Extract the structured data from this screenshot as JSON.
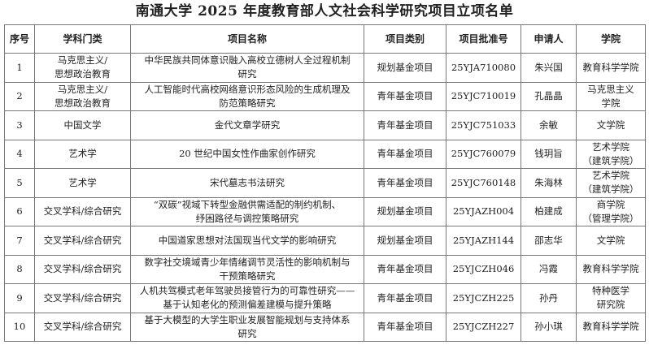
{
  "title": "南通大学 2025 年度教育部人文社会科学研究项目立项名单",
  "columns": [
    "序号",
    "学科门类",
    "项目名称",
    "项目类别",
    "项目批准号",
    "申请人",
    "学院"
  ],
  "rows": [
    {
      "no": "1",
      "discipline": "马克思主义/\n思想政治教育",
      "name": "中华民族共同体意识融入高校立德树人全过程机制\n研究",
      "category": "规划基金项目",
      "approval": "25YJA710080",
      "applicant": "朱兴国",
      "college": "教育科学学院"
    },
    {
      "no": "2",
      "discipline": "马克思主义/\n思想政治教育",
      "name": "人工智能时代高校网络意识形态风险的生成机理及\n防范策略研究",
      "category": "青年基金项目",
      "approval": "25YJC710019",
      "applicant": "孔晶晶",
      "college": "马克思主义\n学院"
    },
    {
      "no": "3",
      "discipline": "中国文学",
      "name": "金代文章学研究",
      "category": "青年基金项目",
      "approval": "25YJC751033",
      "applicant": "余敏",
      "college": "文学院"
    },
    {
      "no": "4",
      "discipline": "艺术学",
      "name": "20 世纪中国女性作曲家创作研究",
      "category": "青年基金项目",
      "approval": "25YJC760079",
      "applicant": "钱玥旨",
      "college": "艺术学院\n（建筑学院）"
    },
    {
      "no": "5",
      "discipline": "艺术学",
      "name": "宋代墓志书法研究",
      "category": "青年基金项目",
      "approval": "25YJC760148",
      "applicant": "朱海林",
      "college": "艺术学院\n（建筑学院）"
    },
    {
      "no": "6",
      "discipline": "交叉学科/综合研究",
      "name": "“双碳”视域下转型金融供需适配的制约机制、\n纾困路径与调控策略研究",
      "category": "规划基金项目",
      "approval": "25YJAZH004",
      "applicant": "柏建成",
      "college": "商学院\n（管理学院）"
    },
    {
      "no": "7",
      "discipline": "交叉学科/综合研究",
      "name": "中国道家思想对法国现当代文学的影响研究",
      "category": "规划基金项目",
      "approval": "25YJAZH144",
      "applicant": "邵志华",
      "college": "文学院"
    },
    {
      "no": "8",
      "discipline": "交叉学科/综合研究",
      "name": "数字社交境域青少年情绪调节灵活性的影响机制与\n干预策略研究",
      "category": "青年基金项目",
      "approval": "25YJCZH046",
      "applicant": "冯霞",
      "college": "教育科学学院"
    },
    {
      "no": "9",
      "discipline": "交叉学科/综合研究",
      "name": "人机共驾模式老年驾驶员接管行为的可靠性研究——\n基于认知老化的预测偏差建模与提升策略",
      "category": "青年基金项目",
      "approval": "25YJCZH225",
      "applicant": "孙丹",
      "college": "特种医学\n研究院"
    },
    {
      "no": "10",
      "discipline": "交叉学科/综合研究",
      "name": "基于大模型的大学生职业发展智能规划与支持体系\n研究",
      "category": "青年基金项目",
      "approval": "25YJCZH227",
      "applicant": "孙小琪",
      "college": "教育科学学院"
    }
  ]
}
